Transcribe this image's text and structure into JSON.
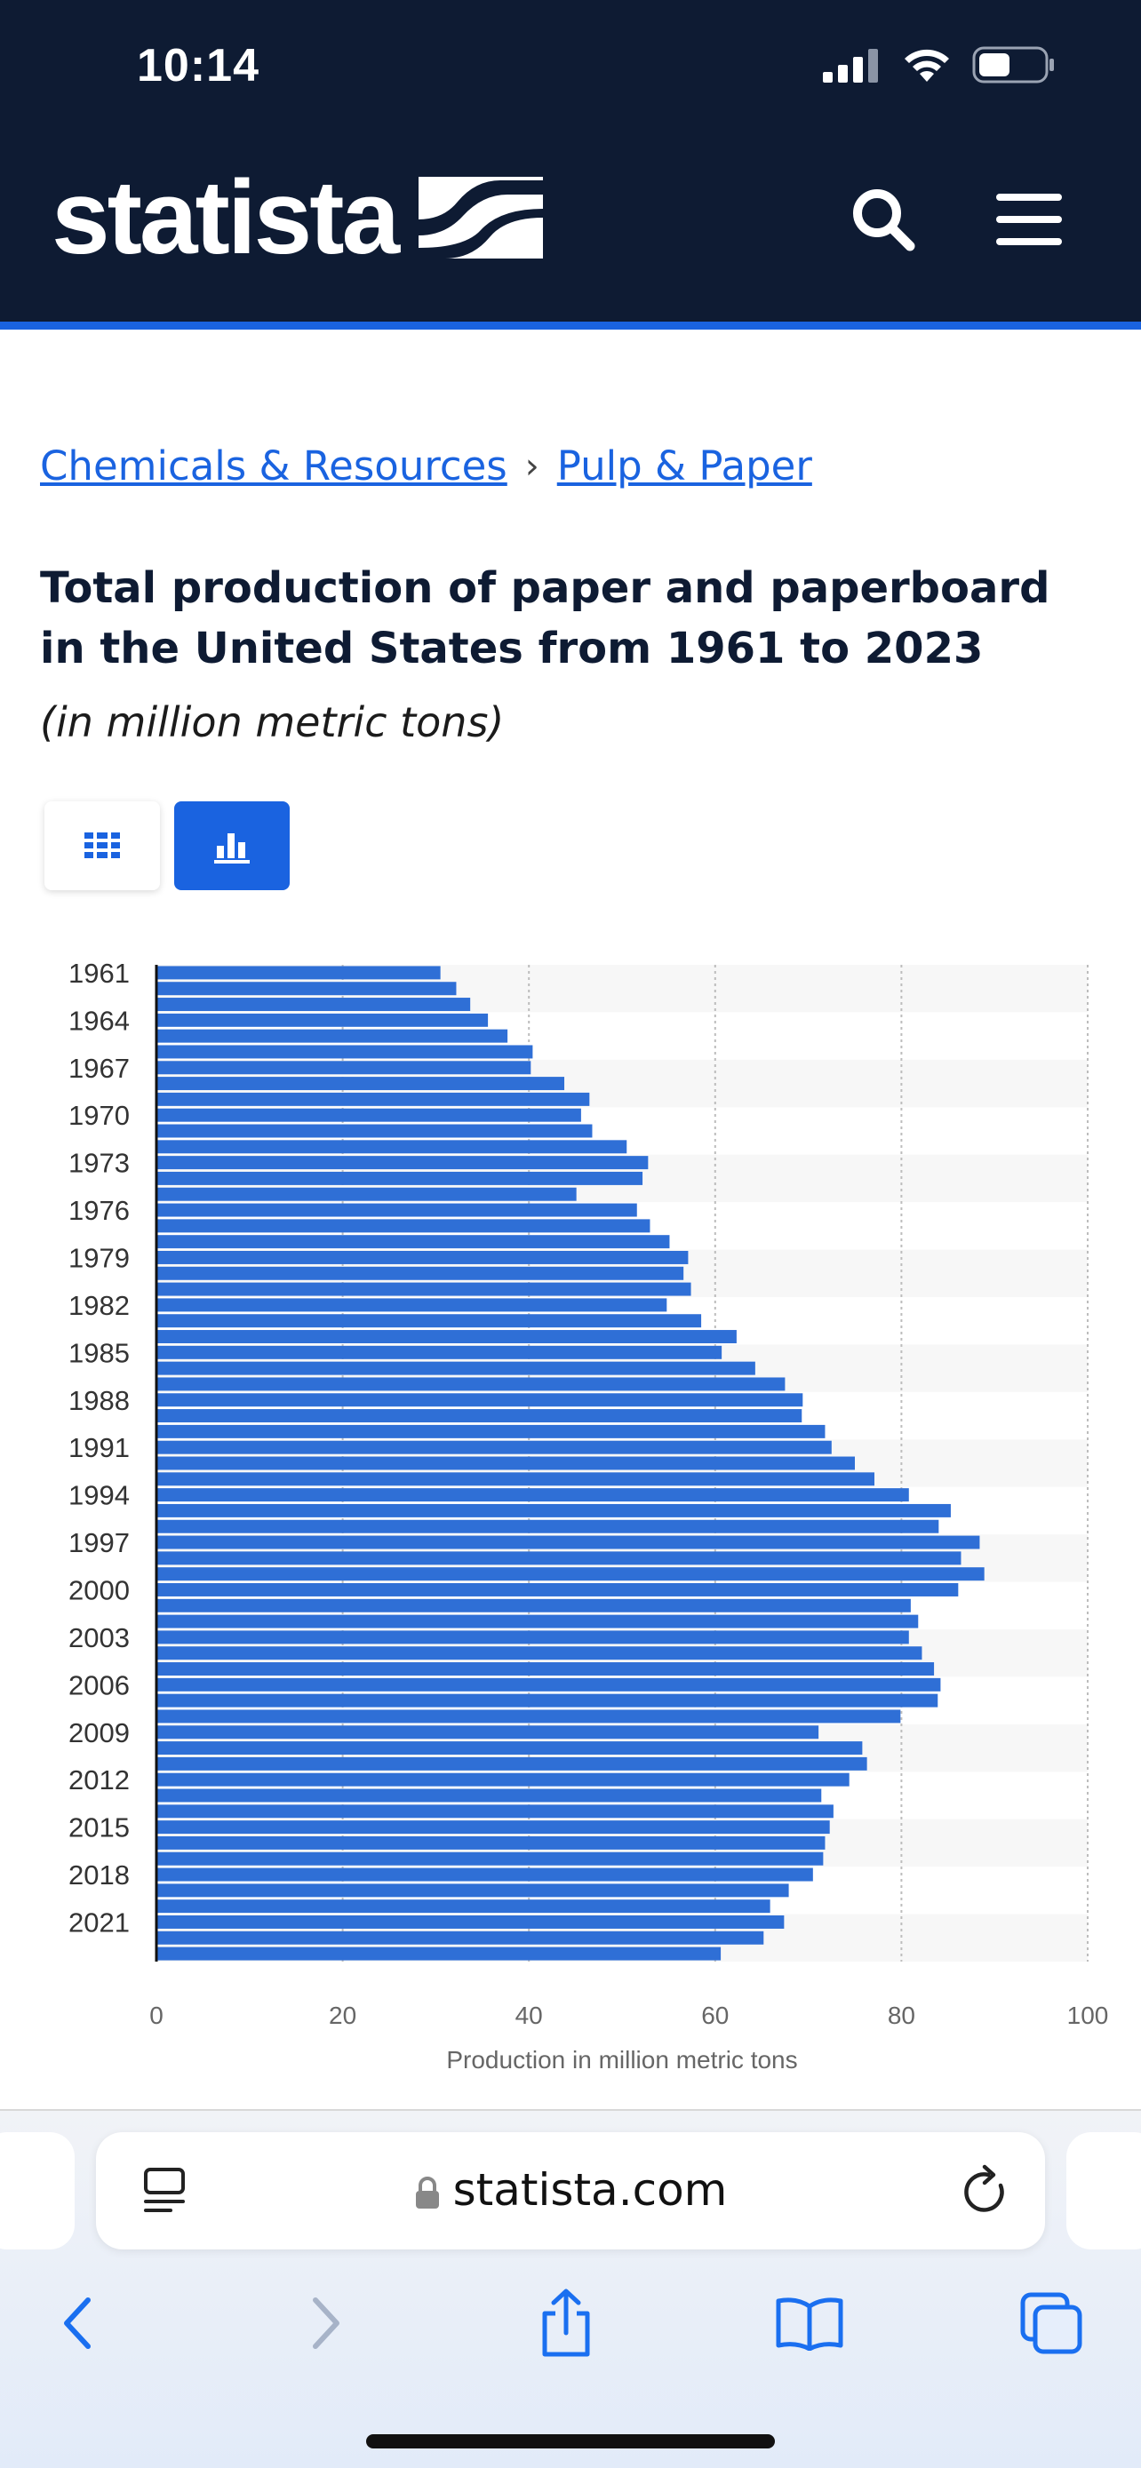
{
  "status": {
    "time": "10:14"
  },
  "header": {
    "logo_text": "statista"
  },
  "breadcrumb": [
    "Chemicals & Resources",
    "Pulp & Paper"
  ],
  "page": {
    "title": "Total production of paper and paperboard in the United States from 1961 to 2023",
    "subtitle": "(in million metric tons)"
  },
  "browser": {
    "url": "statista.com"
  },
  "colors": {
    "header_bg": "#0e1b33",
    "accent": "#1a63e0",
    "bar": "#2f6fd6"
  },
  "chart_data": {
    "type": "bar",
    "orientation": "horizontal",
    "categories": [
      "1961",
      "1962",
      "1963",
      "1964",
      "1965",
      "1966",
      "1967",
      "1968",
      "1969",
      "1970",
      "1971",
      "1972",
      "1973",
      "1974",
      "1975",
      "1976",
      "1977",
      "1978",
      "1979",
      "1980",
      "1981",
      "1982",
      "1983",
      "1984",
      "1985",
      "1986",
      "1987",
      "1988",
      "1989",
      "1990",
      "1991",
      "1992",
      "1993",
      "1994",
      "1995",
      "1996",
      "1997",
      "1998",
      "1999",
      "2000",
      "2001",
      "2002",
      "2003",
      "2004",
      "2005",
      "2006",
      "2007",
      "2008",
      "2009",
      "2010",
      "2011",
      "2012",
      "2013",
      "2014",
      "2015",
      "2016",
      "2017",
      "2018",
      "2019",
      "2020",
      "2021",
      "2022",
      "2023"
    ],
    "category_labels_shown": [
      "1961",
      "1964",
      "1967",
      "1970",
      "1973",
      "1976",
      "1979",
      "1982",
      "1985",
      "1988",
      "1991",
      "1994",
      "1997",
      "2000",
      "2003",
      "2006",
      "2009",
      "2012",
      "2015",
      "2018",
      "2021"
    ],
    "values": [
      30.5,
      32.2,
      33.7,
      35.6,
      37.7,
      40.4,
      40.2,
      43.8,
      46.5,
      45.6,
      46.8,
      50.5,
      52.8,
      52.2,
      45.1,
      51.6,
      53.0,
      55.1,
      57.1,
      56.6,
      57.4,
      54.8,
      58.5,
      62.3,
      60.7,
      64.3,
      67.5,
      69.4,
      69.3,
      71.8,
      72.5,
      75.0,
      77.1,
      80.8,
      85.3,
      84.0,
      88.4,
      86.4,
      88.9,
      86.1,
      81.0,
      81.8,
      80.8,
      82.2,
      83.5,
      84.2,
      83.9,
      79.9,
      71.1,
      75.8,
      76.3,
      74.4,
      71.4,
      72.7,
      72.3,
      71.8,
      71.6,
      70.5,
      67.9,
      65.9,
      67.4,
      65.2,
      60.6
    ],
    "xlim": [
      0,
      100
    ],
    "xticks": [
      0,
      20,
      40,
      60,
      80,
      100
    ],
    "xlabel": "Production in million metric tons",
    "ylabel": "",
    "grid": "vertical dotted"
  }
}
